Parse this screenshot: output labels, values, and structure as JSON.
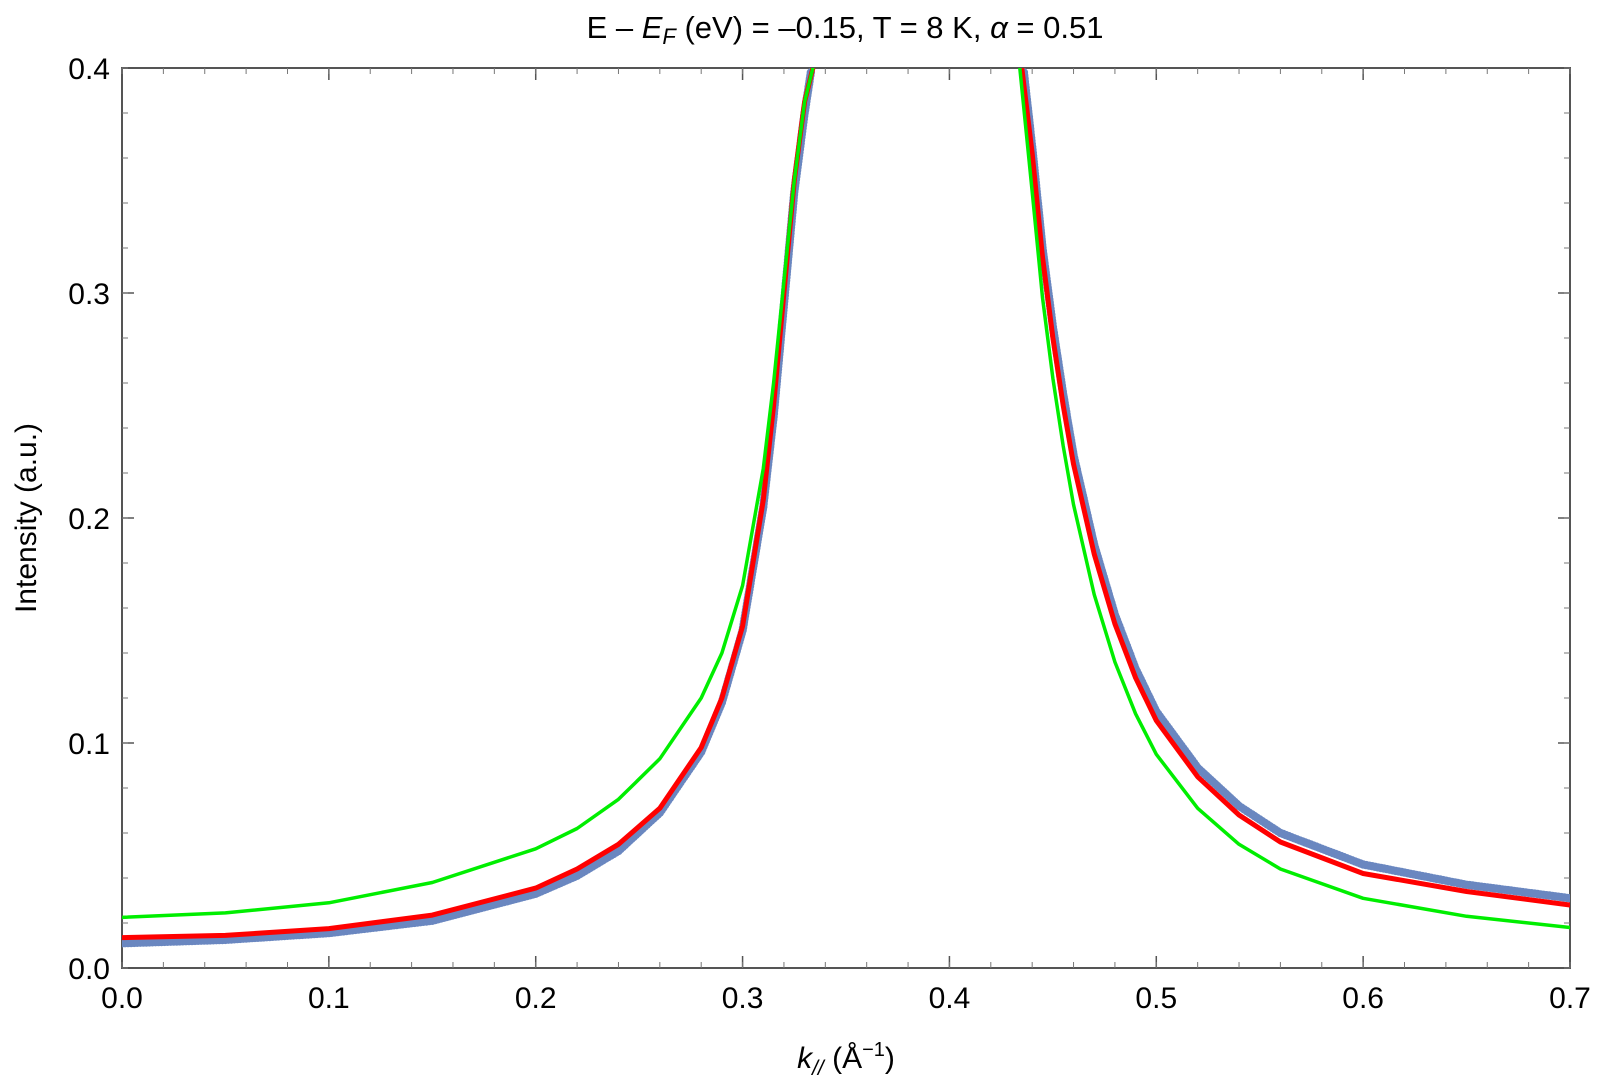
{
  "chart_data": {
    "type": "line",
    "title": {
      "text_a": "E – ",
      "ef_main": "E",
      "ef_sub": "F",
      "text_b": " (eV) = –0.15, T = 8 K, ",
      "alpha_symbol": "α",
      "text_c": " = 0.51"
    },
    "xlabel": {
      "main": "k",
      "sub": "//",
      "unit": " (Å",
      "unit_sup": "−1",
      "unit_close": ")"
    },
    "ylabel": "Intensity (a.u.)",
    "xlim": [
      0.0,
      0.7
    ],
    "ylim": [
      0.0,
      0.4
    ],
    "x_ticks": [
      "0.0",
      "0.1",
      "0.2",
      "0.3",
      "0.4",
      "0.5",
      "0.6",
      "0.7"
    ],
    "y_ticks": [
      "0.0",
      "0.1",
      "0.2",
      "0.3",
      "0.4"
    ],
    "x_tick_values": [
      0.0,
      0.1,
      0.2,
      0.3,
      0.4,
      0.5,
      0.6,
      0.7
    ],
    "y_tick_values": [
      0.0,
      0.1,
      0.2,
      0.3,
      0.4
    ],
    "grid": false,
    "series": [
      {
        "role": "data-points",
        "color": "#6a87c0",
        "style": "dots",
        "x": [
          0.0,
          0.05,
          0.1,
          0.15,
          0.2,
          0.22,
          0.24,
          0.26,
          0.28,
          0.29,
          0.3,
          0.31,
          0.315,
          0.32,
          0.325,
          0.33,
          0.333,
          0.436,
          0.44,
          0.445,
          0.45,
          0.455,
          0.46,
          0.47,
          0.48,
          0.49,
          0.5,
          0.52,
          0.54,
          0.56,
          0.6,
          0.65,
          0.7
        ],
        "y": [
          0.011,
          0.0125,
          0.0155,
          0.021,
          0.033,
          0.041,
          0.052,
          0.069,
          0.096,
          0.118,
          0.15,
          0.205,
          0.245,
          0.295,
          0.345,
          0.38,
          0.398,
          0.398,
          0.365,
          0.32,
          0.285,
          0.255,
          0.228,
          0.188,
          0.157,
          0.133,
          0.114,
          0.089,
          0.072,
          0.06,
          0.046,
          0.037,
          0.031
        ]
      },
      {
        "role": "fit-red",
        "color": "#ff0000",
        "style": "thick-line",
        "x": [
          0.0,
          0.05,
          0.1,
          0.15,
          0.2,
          0.22,
          0.24,
          0.26,
          0.28,
          0.29,
          0.3,
          0.31,
          0.315,
          0.32,
          0.325,
          0.33,
          0.334,
          0.435,
          0.44,
          0.445,
          0.45,
          0.455,
          0.46,
          0.47,
          0.48,
          0.49,
          0.5,
          0.52,
          0.54,
          0.56,
          0.6,
          0.65,
          0.7
        ],
        "y": [
          0.0135,
          0.0145,
          0.0175,
          0.0235,
          0.0355,
          0.044,
          0.055,
          0.071,
          0.098,
          0.12,
          0.152,
          0.208,
          0.25,
          0.3,
          0.35,
          0.385,
          0.4,
          0.4,
          0.362,
          0.316,
          0.28,
          0.25,
          0.224,
          0.184,
          0.153,
          0.129,
          0.11,
          0.085,
          0.068,
          0.056,
          0.042,
          0.034,
          0.028
        ]
      },
      {
        "role": "fit-green",
        "color": "#00ee00",
        "style": "line",
        "x": [
          0.0,
          0.05,
          0.1,
          0.15,
          0.2,
          0.22,
          0.24,
          0.26,
          0.28,
          0.29,
          0.3,
          0.31,
          0.315,
          0.32,
          0.325,
          0.33,
          0.334,
          0.434,
          0.44,
          0.445,
          0.45,
          0.455,
          0.46,
          0.47,
          0.48,
          0.49,
          0.5,
          0.52,
          0.54,
          0.56,
          0.6,
          0.65,
          0.7
        ],
        "y": [
          0.0225,
          0.0245,
          0.029,
          0.038,
          0.053,
          0.062,
          0.075,
          0.093,
          0.12,
          0.14,
          0.17,
          0.222,
          0.26,
          0.305,
          0.35,
          0.385,
          0.4,
          0.4,
          0.345,
          0.298,
          0.262,
          0.232,
          0.206,
          0.166,
          0.136,
          0.113,
          0.095,
          0.071,
          0.055,
          0.044,
          0.031,
          0.023,
          0.018
        ]
      }
    ]
  }
}
